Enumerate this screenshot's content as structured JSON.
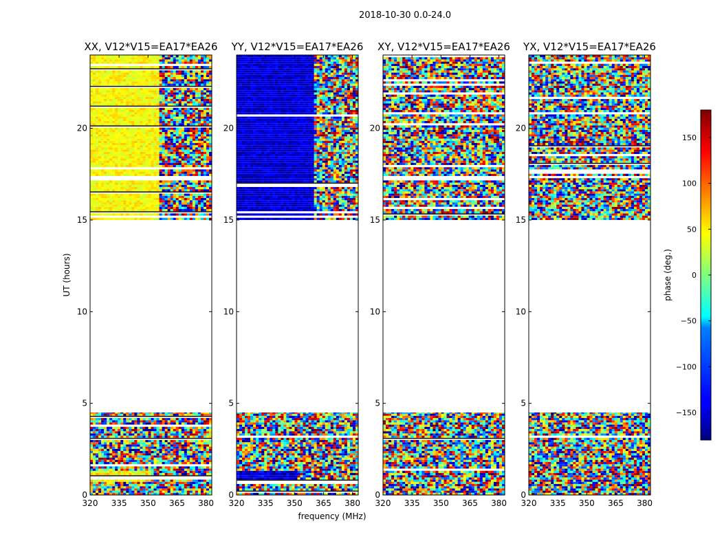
{
  "figure": {
    "suptitle": "2018-10-30 0.0-24.0",
    "xlabel": "frequency (MHz)",
    "ylabel": "UT (hours)",
    "colorbar_label": "phase (deg.)"
  },
  "colors": {
    "colormap": "jet",
    "background": "#ffffff",
    "axes": "#000000"
  },
  "chart_data": {
    "type": "heatmap",
    "value_quantity": "phase",
    "x_ticks": [
      320,
      335,
      350,
      365,
      380
    ],
    "x_tick_labels": [
      "320",
      "335",
      "350",
      "365",
      "380"
    ],
    "xlim": [
      320,
      383
    ],
    "y_ticks": [
      0,
      5,
      10,
      15,
      20
    ],
    "y_tick_labels": [
      "0",
      "5",
      "10",
      "15",
      "20"
    ],
    "ylim": [
      0,
      24
    ],
    "colorbar": {
      "range": [
        -180,
        180
      ],
      "ticks": [
        150,
        100,
        50,
        0,
        -50,
        -100,
        -150
      ],
      "tick_labels": [
        "150",
        "100",
        "50",
        "0",
        "−50",
        "−100",
        "−150"
      ]
    },
    "data_segments_hours": [
      [
        0,
        4.5
      ],
      [
        15,
        24
      ]
    ],
    "panels": [
      {
        "title": "XX, V12*V15=EA17*EA26",
        "dominant_phase_deg": 45,
        "coherent_until_mhz": 356
      },
      {
        "title": "YY, V12*V15=EA17*EA26",
        "dominant_phase_deg": -150,
        "coherent_until_mhz": 360
      },
      {
        "title": "XY, V12*V15=EA17*EA26",
        "dominant_phase_deg": null,
        "coherent_until_mhz": null
      },
      {
        "title": "YX, V12*V15=EA17*EA26",
        "dominant_phase_deg": null,
        "coherent_until_mhz": null
      }
    ]
  }
}
